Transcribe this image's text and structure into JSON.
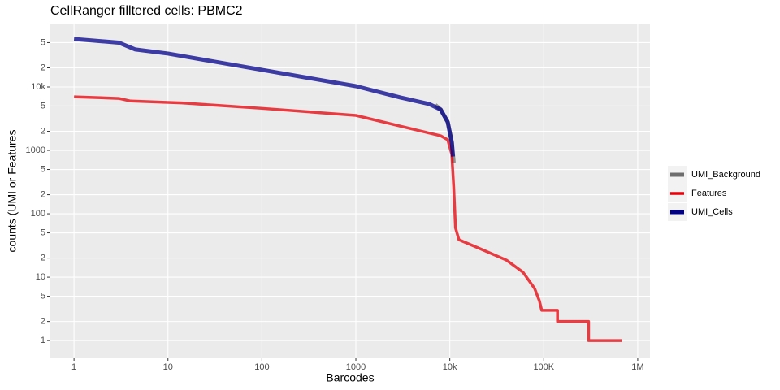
{
  "chart_data": {
    "type": "line",
    "title": "CellRanger filltered cells: PBMC2",
    "x_label": "Barcodes",
    "y_label": "counts (UMI or Features",
    "xlog": true,
    "ylog": true,
    "grid": true,
    "legend_position": "right",
    "xlim": [
      0.56,
      1350000
    ],
    "ylim": [
      0.54,
      97000
    ],
    "xticks": [
      1,
      10,
      100,
      1000,
      {
        "value": 10000,
        "label": "10k"
      },
      {
        "value": 100000,
        "label": "100K"
      },
      {
        "value": 1000000,
        "label": "1M"
      }
    ],
    "yticks": [
      1,
      2,
      5,
      10,
      {
        "value": 20,
        "label": "2"
      },
      {
        "value": 50,
        "label": "5"
      },
      100,
      {
        "value": 200,
        "label": "2"
      },
      {
        "value": 500,
        "label": "5"
      },
      1000,
      {
        "value": 2000,
        "label": "2"
      },
      {
        "value": 5000,
        "label": "5"
      },
      {
        "value": 10000,
        "label": "10k"
      },
      {
        "value": 20000,
        "label": "2"
      },
      {
        "value": 50000,
        "label": "5"
      }
    ],
    "series": [
      {
        "name": "UMI_Background",
        "color": "#6e6e6e",
        "width": 5,
        "x": [
          7000,
          8000,
          9500,
          10500,
          11000
        ],
        "values": [
          5200,
          4400,
          2800,
          1340,
          640
        ]
      },
      {
        "name": "Features",
        "color": "#e5000a",
        "width": 3.5,
        "x": [
          1,
          3,
          4,
          10,
          14,
          100,
          1000,
          3000,
          8000,
          9500,
          10500,
          11000,
          11500,
          12500,
          20000,
          40000,
          60000,
          80000,
          90000,
          95000,
          140000,
          140000,
          300000,
          300000,
          680000
        ],
        "values": [
          7000,
          6600,
          6000,
          5700,
          5600,
          4600,
          3560,
          2400,
          1700,
          1470,
          860,
          265,
          60,
          39,
          29,
          18.6,
          12,
          6.6,
          4.2,
          3,
          3,
          2,
          2,
          1,
          1
        ]
      },
      {
        "name": "UMI_Cells",
        "color": "#00008b",
        "width": 5,
        "x": [
          1,
          3,
          4.5,
          10,
          100,
          1000,
          3000,
          6000,
          8000,
          9500,
          10500,
          10800
        ],
        "values": [
          57000,
          50000,
          39000,
          33600,
          18600,
          10300,
          6800,
          5400,
          4400,
          2800,
          1340,
          800
        ]
      }
    ]
  }
}
